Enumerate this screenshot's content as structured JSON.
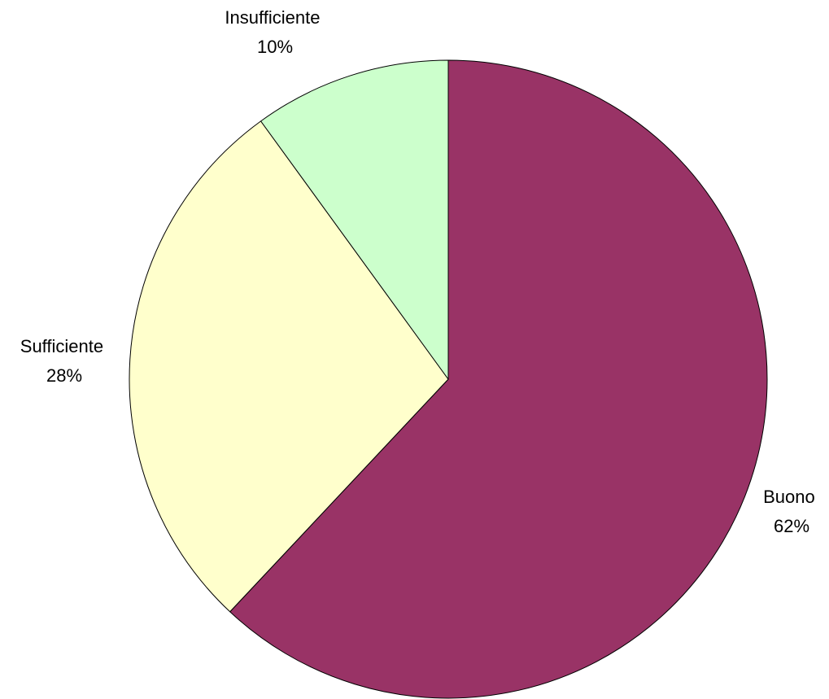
{
  "chart_data": {
    "type": "pie",
    "title": "",
    "start": "12 o'clock",
    "direction": "clockwise",
    "slices": [
      {
        "label": "Buono",
        "value": 62,
        "percent_label": "62%",
        "color": "#993366"
      },
      {
        "label": "Sufficiente",
        "value": 28,
        "percent_label": "28%",
        "color": "#ffffcc"
      },
      {
        "label": "Insufficiente",
        "value": 10,
        "percent_label": "10%",
        "color": "#ccffcc"
      }
    ]
  }
}
